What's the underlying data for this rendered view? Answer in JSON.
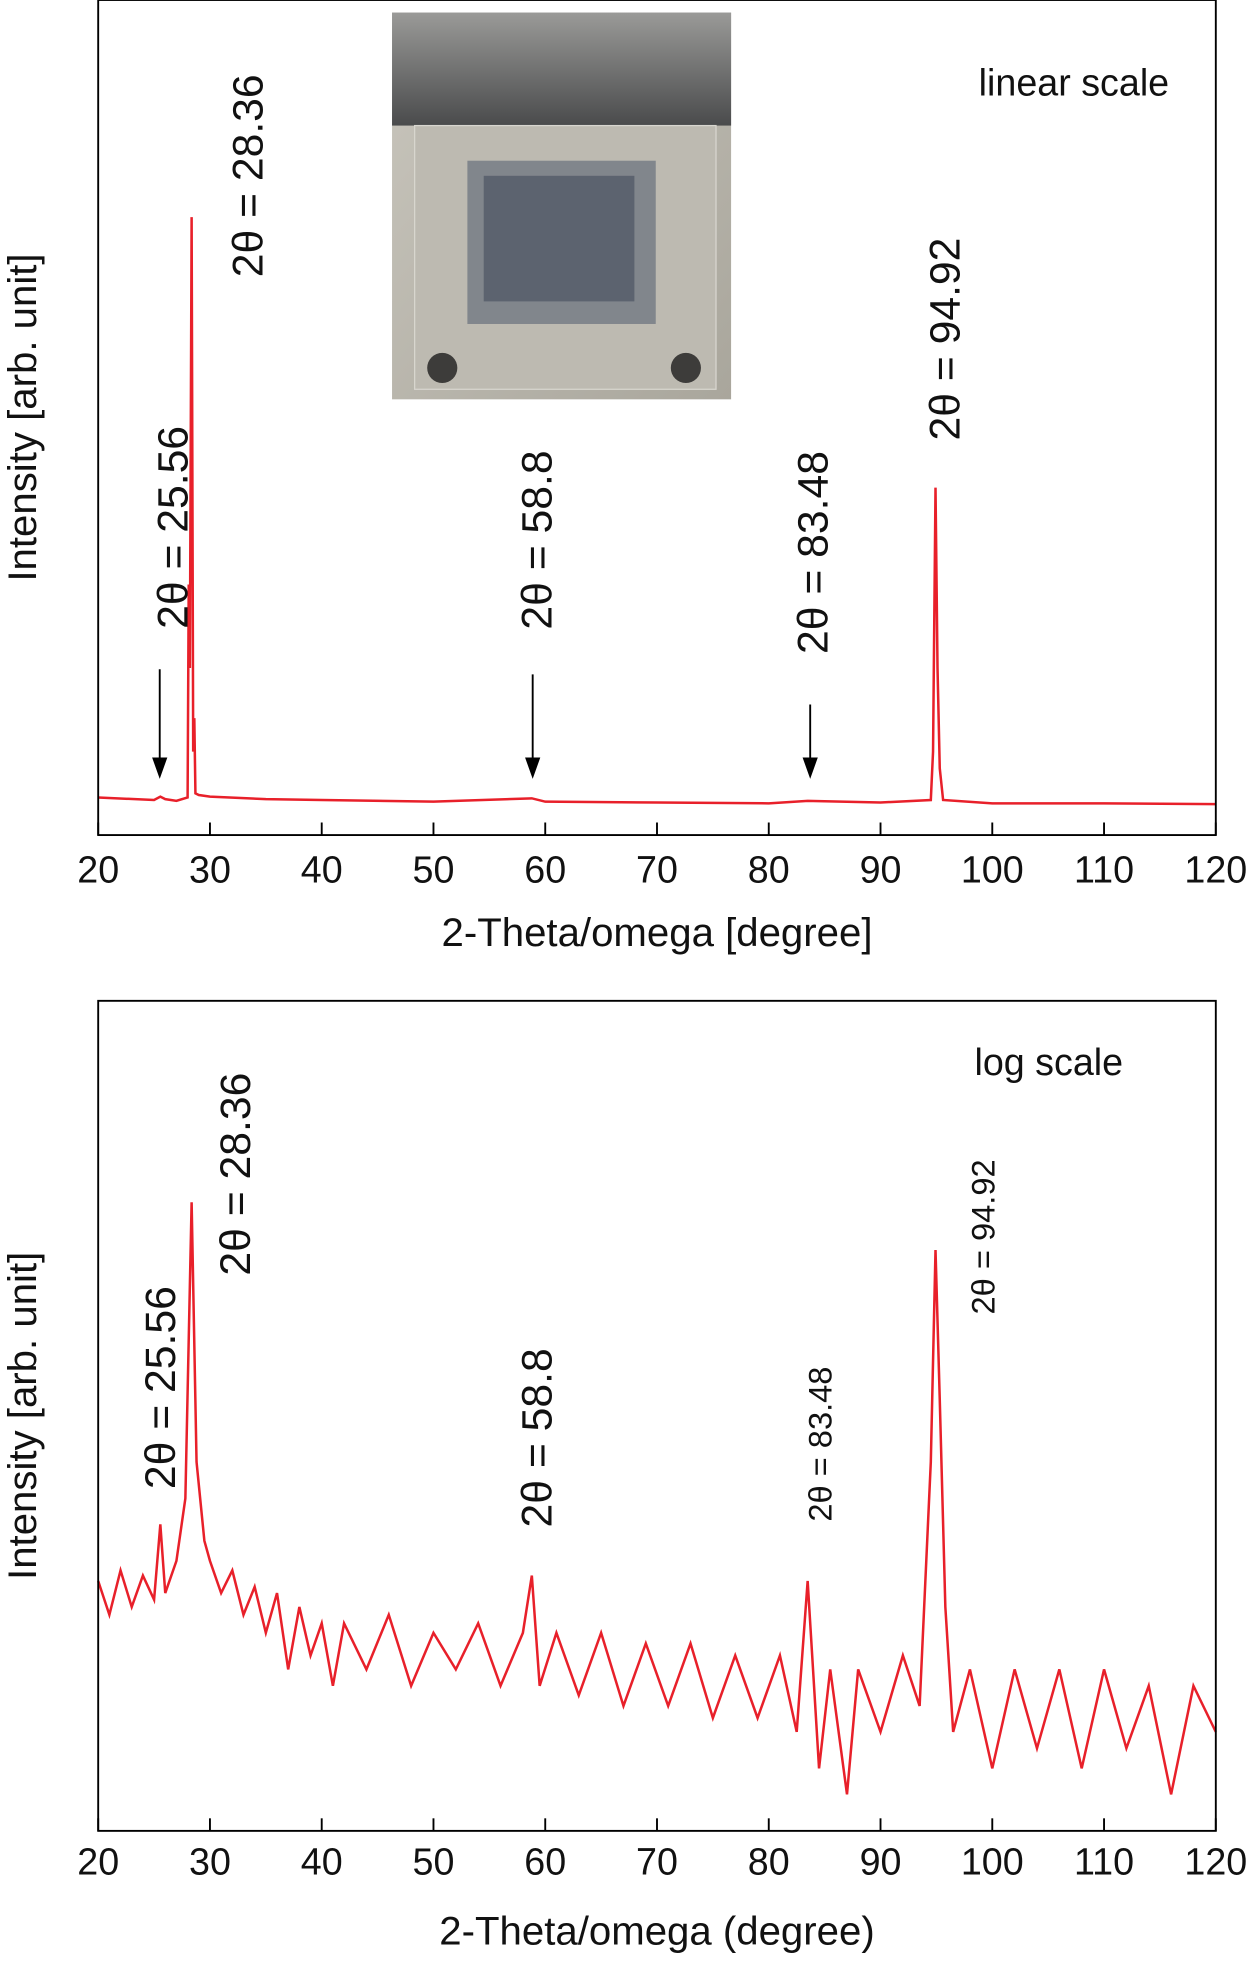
{
  "chart_data": [
    {
      "type": "line",
      "xlabel": "2-Theta/omega [degree]",
      "ylabel": "Intensity [arb. unit]",
      "color": "#e8202a",
      "x": [
        20,
        25,
        25.56,
        26,
        27,
        28,
        28.1,
        28.2,
        28.36,
        28.5,
        28.6,
        28.7,
        29,
        30,
        35,
        40,
        50,
        58.8,
        60,
        70,
        80,
        83.48,
        90,
        94.5,
        94.7,
        94.92,
        95.1,
        95.3,
        95.6,
        100,
        110,
        120
      ],
      "values": [
        4.5,
        4.2,
        4.6,
        4.3,
        4.1,
        4.5,
        30,
        20,
        74,
        10,
        14,
        5,
        4.8,
        4.6,
        4.3,
        4.2,
        4.0,
        4.4,
        4.0,
        3.9,
        3.8,
        4.1,
        3.9,
        4.2,
        10,
        41.6,
        20,
        8,
        4.2,
        3.8,
        3.8,
        3.7
      ],
      "xlim": [
        20,
        120
      ],
      "xticks": [
        20,
        30,
        40,
        50,
        60,
        70,
        80,
        90,
        100,
        110,
        120
      ],
      "ylim": [
        0,
        100
      ],
      "log_scale": false,
      "annotations": [
        "2θ = 28.36",
        "2θ = 25.56",
        "2θ = 58.8",
        "2θ = 83.48",
        "2θ = 94.92",
        "linear scale"
      ]
    },
    {
      "type": "line",
      "xlabel": "2-Theta/omega (degree)",
      "ylabel": "Intensity [arb. unit]",
      "color": "#e8202a",
      "x": [
        20,
        21,
        22,
        23,
        24,
        25,
        25.56,
        26,
        27,
        27.8,
        28.36,
        28.8,
        29.5,
        30,
        31,
        32,
        33,
        34,
        35,
        36,
        37,
        38,
        39,
        40,
        41,
        42,
        44,
        46,
        48,
        50,
        52,
        54,
        56,
        58,
        58.8,
        59.5,
        61,
        63,
        65,
        67,
        69,
        71,
        73,
        75,
        77,
        79,
        81,
        82.5,
        83.48,
        84.5,
        85.5,
        87,
        88,
        90,
        92,
        93.5,
        94.5,
        94.92,
        95.3,
        95.8,
        96.5,
        98,
        100,
        102,
        104,
        106,
        108,
        110,
        112,
        114,
        116,
        118,
        120
      ],
      "values": [
        16,
        11,
        18,
        12,
        17,
        13,
        30,
        14,
        20,
        40,
        1070,
        60,
        25,
        20,
        14,
        18,
        11,
        15,
        9,
        14,
        6,
        12,
        7,
        10,
        5,
        10,
        6,
        11,
        5,
        9,
        6,
        10,
        5,
        9,
        17,
        5,
        9,
        4.5,
        9,
        4,
        8,
        4,
        8,
        3.5,
        7,
        3.5,
        7,
        3,
        16,
        2,
        6,
        1.5,
        6,
        3,
        7,
        4,
        60,
        630,
        120,
        12,
        3,
        6,
        2,
        6,
        2.5,
        6,
        2,
        6,
        2.5,
        5,
        1.5,
        5,
        3
      ],
      "xlim": [
        20,
        120
      ],
      "xticks": [
        20,
        30,
        40,
        50,
        60,
        70,
        80,
        90,
        100,
        110,
        120
      ],
      "ylim": [
        1,
        10000
      ],
      "log_scale": true,
      "annotations": [
        "2θ = 28.36",
        "2θ = 25.56",
        "2θ = 58.8",
        "2θ = 83.48",
        "2θ = 94.92",
        "log scale"
      ]
    }
  ]
}
